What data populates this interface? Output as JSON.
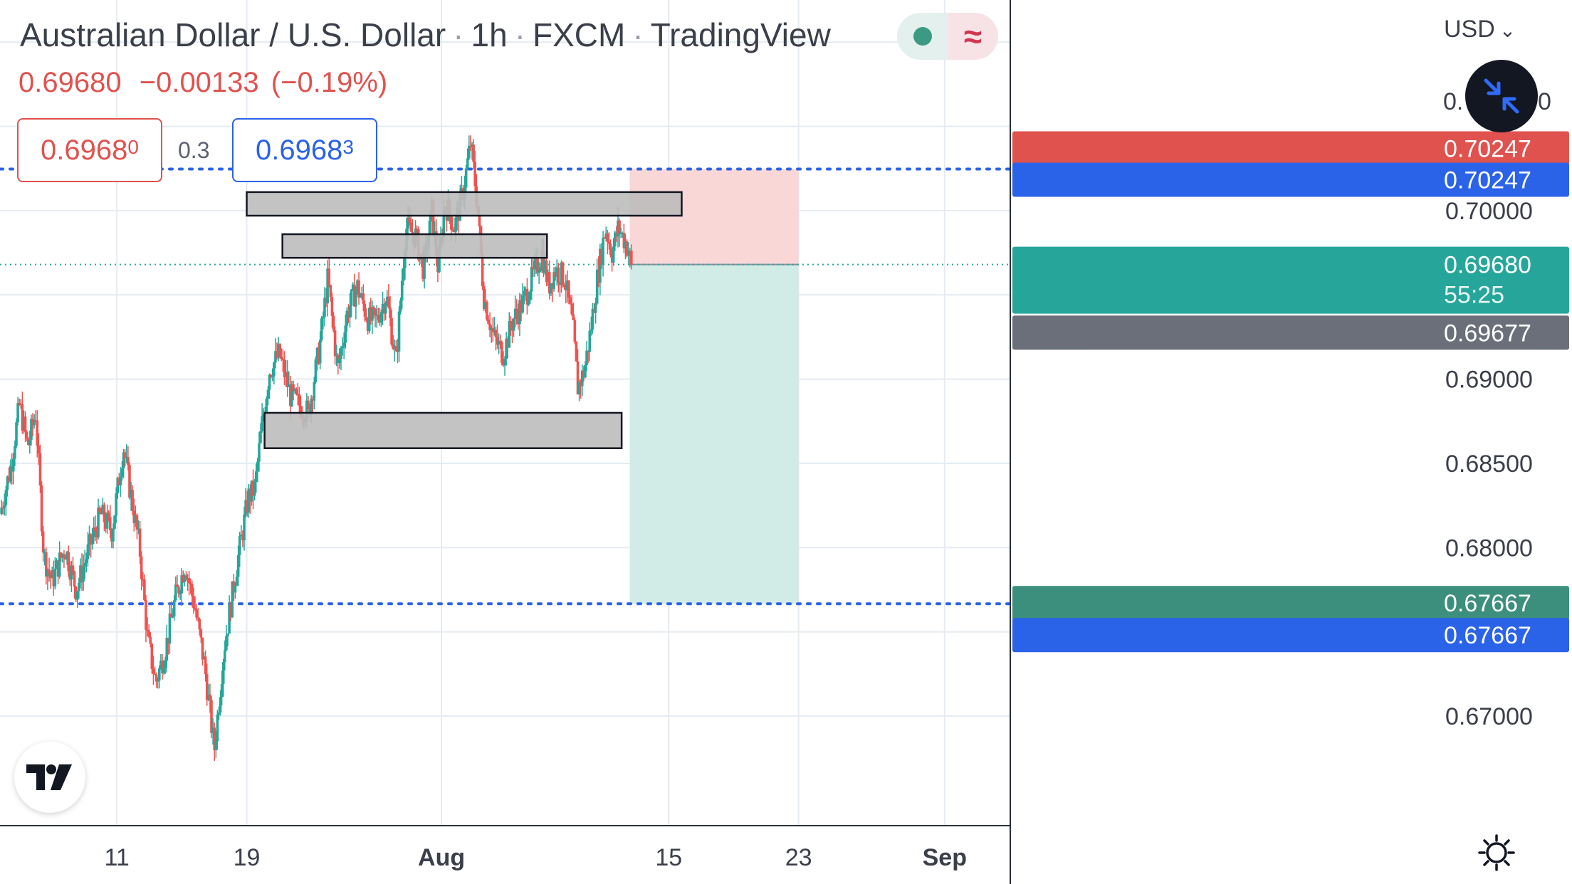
{
  "header": {
    "symbol": "Australian Dollar / U.S. Dollar",
    "interval": "1h",
    "exchange": "FXCM",
    "source": "TradingView",
    "sep": "·",
    "last": "0.69680",
    "change": "−0.00133",
    "change_pct": "(−0.19%)",
    "status_glyph": "≈"
  },
  "quote": {
    "bid_main": "0.6968",
    "bid_tail": "0",
    "spread": "0.3",
    "ask_main": "0.6968",
    "ask_tail": "3"
  },
  "axis": {
    "currency": "USD",
    "currency_caret": "⌄",
    "hidden_label_left": "0.",
    "hidden_label_right": "0"
  },
  "chart_data": {
    "type": "candlestick",
    "instrument": "AUDUSD",
    "timeframe": "1h",
    "ylim": [
      0.6635,
      0.7125
    ],
    "y_ticks": [
      {
        "value": 0.7,
        "label": "0.70000"
      },
      {
        "value": 0.69,
        "label": "0.69000"
      },
      {
        "value": 0.685,
        "label": "0.68500"
      },
      {
        "value": 0.68,
        "label": "0.68000"
      },
      {
        "value": 0.67,
        "label": "0.67000"
      }
    ],
    "x_ticks": [
      {
        "label": "11",
        "day": 11
      },
      {
        "label": "19",
        "day": 19
      },
      {
        "label": "Aug",
        "day": 31
      },
      {
        "label": "15",
        "day": 45
      },
      {
        "label": "23",
        "day": 53
      },
      {
        "label": "Sep",
        "day": 62
      }
    ],
    "x_range_days": [
      3.8,
      66.0
    ],
    "price_path": [
      [
        3.8,
        0.682
      ],
      [
        4.5,
        0.685
      ],
      [
        5.0,
        0.6885
      ],
      [
        5.5,
        0.686
      ],
      [
        6.0,
        0.688
      ],
      [
        6.5,
        0.6795
      ],
      [
        7.0,
        0.678
      ],
      [
        7.8,
        0.68
      ],
      [
        8.5,
        0.6775
      ],
      [
        9.3,
        0.68
      ],
      [
        10.0,
        0.682
      ],
      [
        10.7,
        0.681
      ],
      [
        11.4,
        0.686
      ],
      [
        11.8,
        0.6835
      ],
      [
        12.4,
        0.68
      ],
      [
        12.9,
        0.6745
      ],
      [
        13.4,
        0.672
      ],
      [
        14.0,
        0.674
      ],
      [
        14.6,
        0.677
      ],
      [
        15.2,
        0.679
      ],
      [
        15.8,
        0.6765
      ],
      [
        16.4,
        0.673
      ],
      [
        17.0,
        0.668
      ],
      [
        17.6,
        0.674
      ],
      [
        18.4,
        0.679
      ],
      [
        19.1,
        0.683
      ],
      [
        19.5,
        0.6835
      ],
      [
        19.9,
        0.687
      ],
      [
        20.4,
        0.6905
      ],
      [
        21.0,
        0.6915
      ],
      [
        21.7,
        0.689
      ],
      [
        22.2,
        0.6885
      ],
      [
        22.8,
        0.688
      ],
      [
        23.5,
        0.692
      ],
      [
        24.0,
        0.696
      ],
      [
        24.6,
        0.6905
      ],
      [
        25.2,
        0.694
      ],
      [
        25.8,
        0.6955
      ],
      [
        26.5,
        0.6935
      ],
      [
        27.0,
        0.6935
      ],
      [
        27.6,
        0.695
      ],
      [
        28.2,
        0.691
      ],
      [
        28.8,
        0.699
      ],
      [
        29.4,
        0.6985
      ],
      [
        29.9,
        0.6965
      ],
      [
        30.4,
        0.7
      ],
      [
        30.8,
        0.6965
      ],
      [
        31.2,
        0.7005
      ],
      [
        31.8,
        0.699
      ],
      [
        32.3,
        0.701
      ],
      [
        32.8,
        0.704
      ],
      [
        33.2,
        0.7005
      ],
      [
        33.6,
        0.695
      ],
      [
        34.2,
        0.6925
      ],
      [
        34.8,
        0.6915
      ],
      [
        35.4,
        0.6935
      ],
      [
        36.0,
        0.6945
      ],
      [
        36.6,
        0.696
      ],
      [
        37.2,
        0.6975
      ],
      [
        37.6,
        0.6955
      ],
      [
        38.0,
        0.6965
      ],
      [
        38.6,
        0.696
      ],
      [
        39.1,
        0.693
      ],
      [
        39.4,
        0.6895
      ],
      [
        39.8,
        0.6905
      ],
      [
        40.2,
        0.693
      ],
      [
        40.6,
        0.696
      ],
      [
        41.1,
        0.699
      ],
      [
        41.5,
        0.6975
      ],
      [
        41.9,
        0.699
      ],
      [
        42.4,
        0.698
      ],
      [
        42.7,
        0.6968
      ]
    ],
    "zones": [
      {
        "name": "upper resistance zone",
        "x0": 19.0,
        "x1": 45.8,
        "y0": 0.6997,
        "y1": 0.7011
      },
      {
        "name": "lower resistance zone",
        "x0": 21.2,
        "x1": 37.5,
        "y0": 0.6972,
        "y1": 0.6986
      },
      {
        "name": "support zone",
        "x0": 20.1,
        "x1": 42.1,
        "y0": 0.6859,
        "y1": 0.688
      }
    ],
    "position": {
      "type": "short",
      "x0": 42.6,
      "x1": 53.0,
      "entry": 0.6968,
      "stop": 0.70247,
      "target": 0.67667
    },
    "levels": {
      "stop": {
        "value": 0.70247,
        "label": "0.70247"
      },
      "target": {
        "value": 0.67667,
        "label": "0.67667"
      },
      "last": {
        "value": 0.6968,
        "label": "0.69680"
      },
      "countdown": "55:25",
      "prev": {
        "value": 0.69677,
        "label": "0.69677"
      }
    },
    "colors": {
      "up": "#26a69a",
      "down": "#ef5350",
      "stop_zone": "#f8d7d6",
      "target_zone": "#d1ebe7",
      "level_line": "#2a62e8",
      "zone_fill": "#bdbdbd",
      "grid": "#e6ebf1",
      "axis_text": "#3b3f4a"
    }
  }
}
